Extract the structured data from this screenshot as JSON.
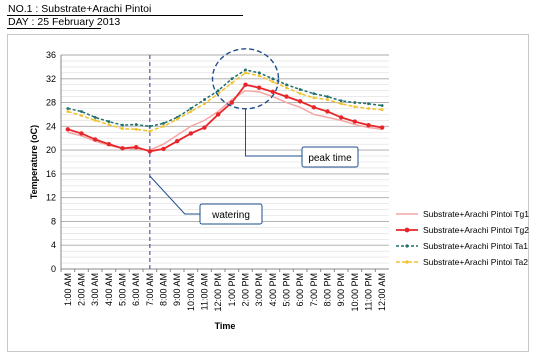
{
  "header": {
    "line1": "NO.1 : Substrate+Arachi Pintoi",
    "line2": "DAY : 25 February 2013"
  },
  "chart_data": {
    "type": "line",
    "xlabel": "Time",
    "ylabel": "Temperature (oC)",
    "ylim": [
      0,
      36
    ],
    "yticks": [
      0,
      4,
      8,
      12,
      16,
      20,
      24,
      28,
      32,
      36
    ],
    "grid": true,
    "legend_position": "right",
    "categories": [
      "1:00 AM",
      "2:00 AM",
      "3:00 AM",
      "4:00 AM",
      "5:00 AM",
      "6:00 AM",
      "7:00 AM",
      "8:00 AM",
      "9:00 AM",
      "10:00 AM",
      "11:00 AM",
      "12:00 PM",
      "1:00 PM",
      "2:00 PM",
      "3:00 PM",
      "4:00 PM",
      "5:00 PM",
      "6:00 PM",
      "7:00 PM",
      "8:00 PM",
      "9:00 PM",
      "10:00 PM",
      "11:00 PM",
      "12:00 AM"
    ],
    "series": [
      {
        "name": "Substrate+Arachi Pintoi Tg1",
        "color": "#f4a6a6",
        "marker": "none",
        "dash": "",
        "values": [
          23.0,
          22.4,
          21.5,
          20.8,
          20.3,
          20.2,
          20.0,
          21.0,
          22.5,
          24.0,
          25.0,
          26.5,
          28.5,
          30.0,
          29.8,
          29.0,
          28.0,
          27.2,
          26.0,
          25.5,
          25.0,
          24.3,
          23.8,
          23.5
        ]
      },
      {
        "name": "Substrate+Arachi Pintoi Tg2",
        "color": "#e8262a",
        "marker": "circle",
        "dash": "",
        "values": [
          23.5,
          22.8,
          21.8,
          21.0,
          20.3,
          20.5,
          19.8,
          20.2,
          21.5,
          22.8,
          23.8,
          26.0,
          28.0,
          31.0,
          30.5,
          29.8,
          29.0,
          28.2,
          27.2,
          26.5,
          25.5,
          24.8,
          24.2,
          23.8
        ]
      },
      {
        "name": "Substrate+Arachi Pintoi Ta1",
        "color": "#1f6f6a",
        "marker": "dot",
        "dash": "3,2",
        "values": [
          27.0,
          26.5,
          25.5,
          24.8,
          24.2,
          24.3,
          24.0,
          24.5,
          25.5,
          27.0,
          28.5,
          30.0,
          32.0,
          33.5,
          33.0,
          32.0,
          31.0,
          30.2,
          29.5,
          29.0,
          28.3,
          28.0,
          27.8,
          27.5
        ]
      },
      {
        "name": "Substrate+Arachi Pintoi Ta2",
        "color": "#f2c12e",
        "marker": "dot",
        "dash": "4,2",
        "values": [
          26.5,
          25.8,
          25.0,
          24.3,
          23.6,
          23.5,
          23.2,
          24.0,
          25.2,
          26.5,
          27.8,
          29.5,
          31.3,
          33.0,
          32.5,
          31.5,
          30.5,
          29.5,
          28.8,
          28.5,
          27.8,
          27.3,
          27.0,
          26.8
        ]
      }
    ],
    "annotations": [
      {
        "text": "peak time",
        "at": "2:00 PM"
      },
      {
        "text": "watering",
        "at": "7:00 AM"
      }
    ]
  }
}
